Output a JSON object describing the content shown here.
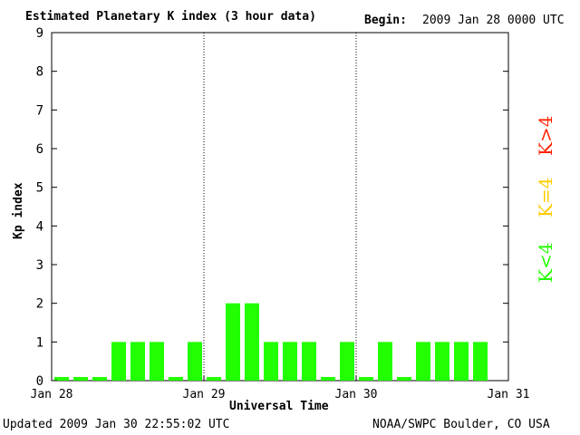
{
  "header": {
    "title": "Estimated Planetary K index (3 hour data)",
    "begin_label": "Begin:",
    "begin_value": "2009 Jan 28 0000 UTC"
  },
  "footer": {
    "updated": "Updated 2009 Jan 30 22:55:02 UTC",
    "source": "NOAA/SWPC Boulder, CO USA"
  },
  "legend": {
    "items": [
      {
        "label": "K>4",
        "color": "#ff2200"
      },
      {
        "label": "K=4",
        "color": "#ffcc00"
      },
      {
        "label": "K<4",
        "color": "#22ff00"
      }
    ]
  },
  "chart_data": {
    "type": "bar",
    "title": "Estimated Planetary K index (3 hour data)",
    "xlabel": "Universal Time",
    "ylabel": "Kp index",
    "ylim": [
      0,
      9
    ],
    "yticks": [
      0,
      1,
      2,
      3,
      4,
      5,
      6,
      7,
      8,
      9
    ],
    "xticks": [
      "Jan 28",
      "Jan 29",
      "Jan 30",
      "Jan 31"
    ],
    "day_separators": [
      "Jan 29",
      "Jan 30"
    ],
    "interval_hours": 3,
    "bar_color": "#22ff00",
    "series": [
      {
        "values": [
          0,
          0,
          0,
          1,
          1,
          1,
          0,
          1,
          0,
          2,
          2,
          1,
          1,
          1,
          0,
          1,
          0,
          1,
          0,
          1,
          1,
          1,
          1
        ]
      }
    ]
  }
}
